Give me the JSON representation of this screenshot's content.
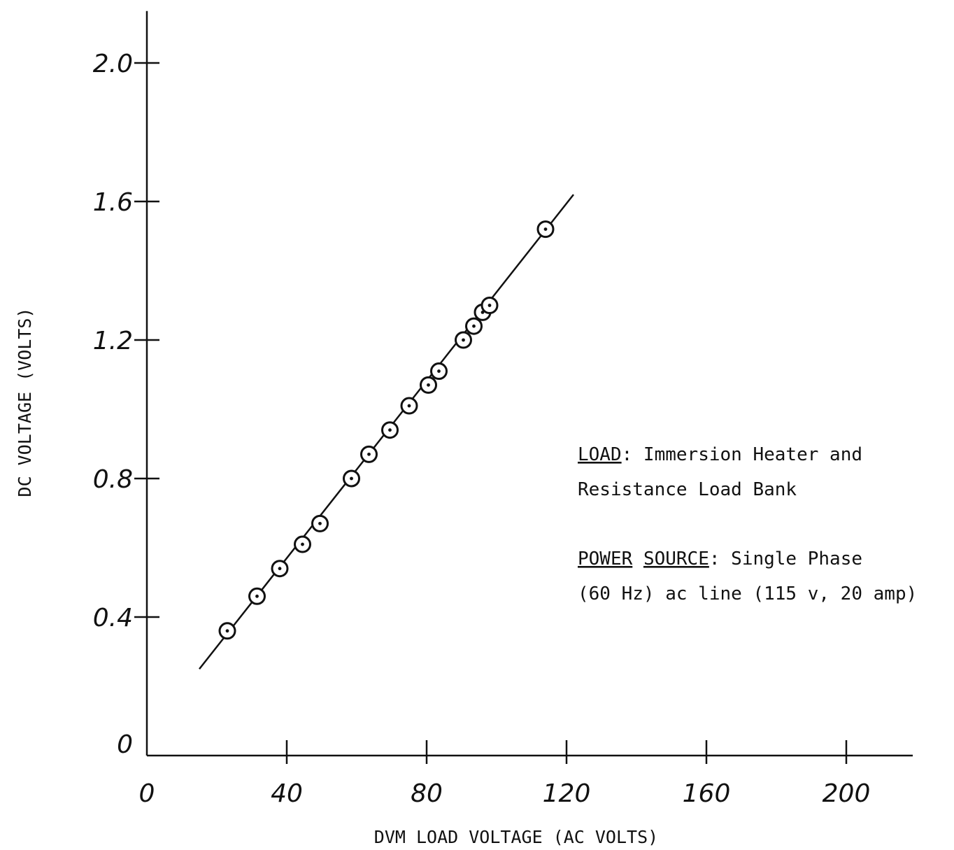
{
  "chart_data": {
    "type": "scatter",
    "xlabel": "DVM LOAD VOLTAGE (AC VOLTS)",
    "ylabel": "DC VOLTAGE (VOLTS)",
    "xlim": [
      0,
      215
    ],
    "ylim": [
      0,
      2.15
    ],
    "x_ticks": [
      0,
      40,
      80,
      120,
      160,
      200
    ],
    "x_tick_labels": [
      "0",
      "40",
      "80",
      "120",
      "160",
      "200"
    ],
    "y_ticks": [
      0,
      0.4,
      0.8,
      1.2,
      1.6,
      2.0
    ],
    "y_tick_labels": [
      "0",
      "0.4",
      "0.8",
      "1.2",
      "1.6",
      "2.0"
    ],
    "grid": false,
    "series": [
      {
        "marker": "circled-dot",
        "x": [
          23,
          31.5,
          38,
          44.5,
          49.5,
          58.5,
          63.5,
          69.5,
          75,
          80.5,
          83.5,
          90.5,
          93.5,
          96,
          98,
          114
        ],
        "y": [
          0.36,
          0.46,
          0.54,
          0.61,
          0.67,
          0.8,
          0.87,
          0.94,
          1.01,
          1.07,
          1.11,
          1.2,
          1.24,
          1.28,
          1.3,
          1.52
        ]
      }
    ],
    "fit_line": {
      "x": [
        15,
        122
      ],
      "y": [
        0.25,
        1.62
      ]
    },
    "annotations": {
      "load_label": "LOAD",
      "load_text_1": ":  Immersion Heater and",
      "load_text_2": "Resistance Load Bank",
      "power_label": "POWER",
      "source_label": "SOURCE",
      "power_text_1": ":  Single Phase",
      "power_text_2": "(60 Hz) ac line (115 v, 20 amp)"
    }
  }
}
